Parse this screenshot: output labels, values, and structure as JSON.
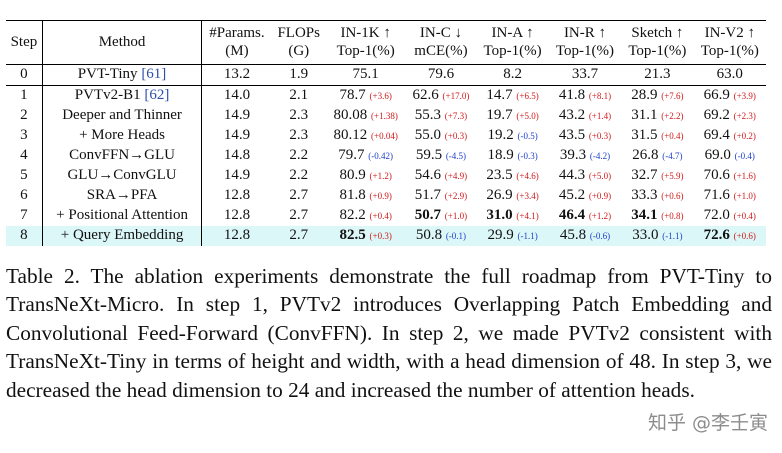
{
  "table": {
    "headers": [
      [
        "Step"
      ],
      [
        "Method"
      ],
      [
        "#Params.",
        "(M)"
      ],
      [
        "FLOPs",
        "(G)"
      ],
      [
        "IN-1K ↑",
        "Top-1(%)"
      ],
      [
        "IN-C ↓",
        "mCE(%)"
      ],
      [
        "IN-A ↑",
        "Top-1(%)"
      ],
      [
        "IN-R ↑",
        "Top-1(%)"
      ],
      [
        "Sketch ↑",
        "Top-1(%)"
      ],
      [
        "IN-V2 ↑",
        "Top-1(%)"
      ]
    ],
    "rows": [
      {
        "step": "0",
        "method": "PVT-Tiny",
        "ref": "[61]",
        "params": "13.2",
        "flops": "1.9",
        "metrics": [
          {
            "v": "75.1"
          },
          {
            "v": "79.6"
          },
          {
            "v": "8.2"
          },
          {
            "v": "33.7"
          },
          {
            "v": "21.3"
          },
          {
            "v": "63.0"
          }
        ]
      },
      {
        "step": "1",
        "method": "PVTv2-B1",
        "ref": "[62]",
        "params": "14.0",
        "flops": "2.1",
        "metrics": [
          {
            "v": "78.7",
            "d": "(+3.6)"
          },
          {
            "v": "62.6",
            "d": "(+17.0)"
          },
          {
            "v": "14.7",
            "d": "(+6.5)"
          },
          {
            "v": "41.8",
            "d": "(+8.1)"
          },
          {
            "v": "28.9",
            "d": "(+7.6)"
          },
          {
            "v": "66.9",
            "d": "(+3.9)"
          }
        ]
      },
      {
        "step": "2",
        "method": "Deeper and Thinner",
        "params": "14.9",
        "flops": "2.3",
        "metrics": [
          {
            "v": "80.08",
            "d": "(+1.38)"
          },
          {
            "v": "55.3",
            "d": "(+7.3)"
          },
          {
            "v": "19.7",
            "d": "(+5.0)"
          },
          {
            "v": "43.2",
            "d": "(+1.4)"
          },
          {
            "v": "31.1",
            "d": "(+2.2)"
          },
          {
            "v": "69.2",
            "d": "(+2.3)"
          }
        ]
      },
      {
        "step": "3",
        "method": "+ More Heads",
        "params": "14.9",
        "flops": "2.3",
        "metrics": [
          {
            "v": "80.12",
            "d": "(+0.04)"
          },
          {
            "v": "55.0",
            "d": "(+0.3)"
          },
          {
            "v": "19.2",
            "d": "(-0.5)"
          },
          {
            "v": "43.5",
            "d": "(+0.3)"
          },
          {
            "v": "31.5",
            "d": "(+0.4)"
          },
          {
            "v": "69.4",
            "d": "(+0.2)"
          }
        ]
      },
      {
        "step": "4",
        "method": "ConvFFN→GLU",
        "params": "14.8",
        "flops": "2.2",
        "metrics": [
          {
            "v": "79.7",
            "d": "(-0.42)"
          },
          {
            "v": "59.5",
            "d": "(-4.5)"
          },
          {
            "v": "18.9",
            "d": "(-0.3)"
          },
          {
            "v": "39.3",
            "d": "(-4.2)"
          },
          {
            "v": "26.8",
            "d": "(-4.7)"
          },
          {
            "v": "69.0",
            "d": "(-0.4)"
          }
        ]
      },
      {
        "step": "5",
        "method": "GLU→ConvGLU",
        "params": "14.9",
        "flops": "2.2",
        "metrics": [
          {
            "v": "80.9",
            "d": "(+1.2)"
          },
          {
            "v": "54.6",
            "d": "(+4.9)"
          },
          {
            "v": "23.5",
            "d": "(+4.6)"
          },
          {
            "v": "44.3",
            "d": "(+5.0)"
          },
          {
            "v": "32.7",
            "d": "(+5.9)"
          },
          {
            "v": "70.6",
            "d": "(+1.6)"
          }
        ]
      },
      {
        "step": "6",
        "method": "SRA→PFA",
        "params": "12.8",
        "flops": "2.7",
        "metrics": [
          {
            "v": "81.8",
            "d": "(+0.9)"
          },
          {
            "v": "51.7",
            "d": "(+2.9)"
          },
          {
            "v": "26.9",
            "d": "(+3.4)"
          },
          {
            "v": "45.2",
            "d": "(+0.9)"
          },
          {
            "v": "33.3",
            "d": "(+0.6)"
          },
          {
            "v": "71.6",
            "d": "(+1.0)"
          }
        ]
      },
      {
        "step": "7",
        "method": "+ Positional Attention",
        "params": "12.8",
        "flops": "2.7",
        "metrics": [
          {
            "v": "82.2",
            "d": "(+0.4)"
          },
          {
            "v": "50.7",
            "d": "(+1.0)",
            "bold": true
          },
          {
            "v": "31.0",
            "d": "(+4.1)",
            "bold": true
          },
          {
            "v": "46.4",
            "d": "(+1.2)",
            "bold": true
          },
          {
            "v": "34.1",
            "d": "(+0.8)",
            "bold": true
          },
          {
            "v": "72.0",
            "d": "(+0.4)"
          }
        ]
      },
      {
        "step": "8",
        "method": "+ Query Embedding",
        "params": "12.8",
        "flops": "2.7",
        "highlight": true,
        "metrics": [
          {
            "v": "82.5",
            "d": "(+0.3)",
            "bold": true
          },
          {
            "v": "50.8",
            "d": "(-0.1)"
          },
          {
            "v": "29.9",
            "d": "(-1.1)"
          },
          {
            "v": "45.8",
            "d": "(-0.6)"
          },
          {
            "v": "33.0",
            "d": "(-1.1)"
          },
          {
            "v": "72.6",
            "d": "(+0.6)",
            "bold": true
          }
        ]
      }
    ]
  },
  "caption": "Table 2. The ablation experiments demonstrate the full roadmap from PVT-Tiny to TransNeXt-Micro. In step 1, PVTv2 introduces Overlapping Patch Embedding and Convolutional Feed-Forward (ConvFFN). In step 2, we made PVTv2 consistent with TransNeXt-Tiny in terms of height and width, with a head dimension of 48. In step 3, we decreased the head dimension to 24 and increased the number of attention heads.",
  "watermark": "知乎 @李壬寅"
}
